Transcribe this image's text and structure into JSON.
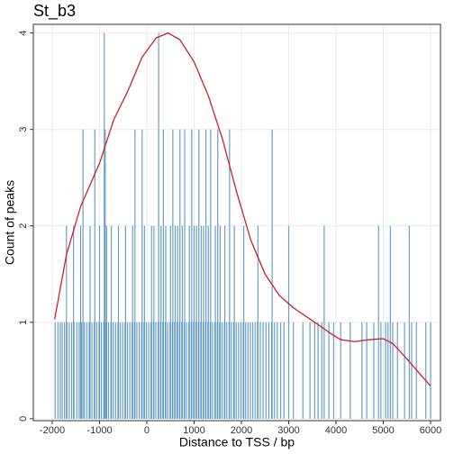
{
  "chart_data": {
    "type": "bar",
    "title": "St_b3",
    "x_label": "Distance to TSS / bp",
    "y_label": "Count of peaks",
    "xlim": [
      -2400,
      6210
    ],
    "ylim": [
      -0.02,
      4.09
    ],
    "xticks": [
      -2000,
      -1000,
      0,
      1000,
      2000,
      3000,
      4000,
      5000,
      6000
    ],
    "yticks": [
      0,
      1,
      2,
      3,
      4
    ],
    "grid": true,
    "series": [
      {
        "type": "bar",
        "color": "#4f8fc0",
        "x": [
          -1940,
          -1880,
          -1830,
          -1790,
          -1740,
          -1690,
          -1640,
          -1590,
          -1540,
          -1480,
          -1430,
          -1380,
          -1320,
          -1270,
          -1220,
          -1160,
          -1110,
          -1060,
          -1010,
          -960,
          -910,
          -860,
          -810,
          -760,
          -710,
          -660,
          -610,
          -560,
          -510,
          -460,
          -410,
          -360,
          -310,
          -260,
          -210,
          -160,
          -110,
          -60,
          -10,
          40,
          90,
          140,
          190,
          240,
          290,
          340,
          390,
          440,
          490,
          540,
          590,
          640,
          690,
          740,
          790,
          840,
          890,
          940,
          990,
          1040,
          1090,
          1140,
          1190,
          1240,
          1290,
          1340,
          1390,
          1440,
          1490,
          1540,
          1590,
          1640,
          1690,
          1740,
          1790,
          1840,
          1890,
          1940,
          1990,
          2040,
          2090,
          2140,
          2190,
          2240,
          2290,
          2340,
          2400,
          2460,
          2520,
          2580,
          2640,
          2700,
          2760,
          2830,
          2900,
          3100,
          3300,
          3450,
          3550,
          3620,
          3700,
          3850,
          3950,
          4100,
          4300,
          4550,
          4650,
          4800,
          4950,
          5050,
          5100,
          5200,
          5300,
          5450,
          5600,
          5700,
          5900,
          6000,
          -1700,
          -1550,
          -1400,
          -1200,
          -1000,
          -850,
          -750,
          -600,
          -450,
          -300,
          -50,
          100,
          150,
          300,
          400,
          500,
          600,
          650,
          750,
          900,
          1000,
          1050,
          1150,
          1200,
          1300,
          1450,
          1550,
          1650,
          1850,
          2050,
          2350,
          3000,
          3750,
          4900,
          5150,
          5550,
          -1350,
          -1100,
          -880,
          -250,
          -100,
          350,
          550,
          700,
          800,
          950,
          1100,
          1250,
          1350,
          1500,
          1750,
          2650,
          -900,
          250
        ],
        "values": [
          1,
          1,
          1,
          1,
          1,
          1,
          1,
          1,
          1,
          1,
          1,
          1,
          1,
          1,
          1,
          1,
          1,
          1,
          1,
          1,
          1,
          1,
          1,
          1,
          1,
          1,
          1,
          1,
          1,
          1,
          1,
          1,
          1,
          1,
          1,
          1,
          1,
          1,
          1,
          1,
          1,
          1,
          1,
          1,
          1,
          1,
          1,
          1,
          1,
          1,
          1,
          1,
          1,
          1,
          1,
          1,
          1,
          1,
          1,
          1,
          1,
          1,
          1,
          1,
          1,
          1,
          1,
          1,
          1,
          1,
          1,
          1,
          1,
          1,
          1,
          1,
          1,
          1,
          1,
          1,
          1,
          1,
          1,
          1,
          1,
          1,
          1,
          1,
          1,
          1,
          1,
          1,
          1,
          1,
          1,
          1,
          1,
          1,
          1,
          1,
          1,
          1,
          1,
          1,
          1,
          1,
          1,
          1,
          1,
          1,
          1,
          1,
          1,
          1,
          1,
          1,
          1,
          1,
          2,
          2,
          2,
          2,
          2,
          2,
          2,
          2,
          2,
          2,
          2,
          2,
          2,
          2,
          2,
          2,
          2,
          2,
          2,
          2,
          2,
          2,
          2,
          2,
          2,
          2,
          2,
          2,
          2,
          2,
          2,
          2,
          2,
          2,
          2,
          2,
          3,
          3,
          3,
          3,
          3,
          3,
          3,
          3,
          3,
          3,
          3,
          3,
          3,
          3,
          3,
          3,
          4,
          4
        ]
      },
      {
        "type": "line",
        "color": "#cc1f2a",
        "x": [
          -1950,
          -1700,
          -1400,
          -1000,
          -700,
          -400,
          -100,
          200,
          450,
          700,
          1000,
          1300,
          1600,
          1900,
          2200,
          2500,
          2800,
          3100,
          3400,
          3700,
          3900,
          4100,
          4400,
          4700,
          5000,
          5200,
          5500,
          5800,
          6000
        ],
        "values": [
          1.03,
          1.7,
          2.2,
          2.65,
          3.1,
          3.4,
          3.75,
          3.95,
          4.0,
          3.93,
          3.7,
          3.35,
          2.9,
          2.35,
          1.85,
          1.5,
          1.28,
          1.15,
          1.05,
          0.95,
          0.88,
          0.82,
          0.8,
          0.82,
          0.83,
          0.78,
          0.62,
          0.45,
          0.34
        ]
      }
    ]
  }
}
